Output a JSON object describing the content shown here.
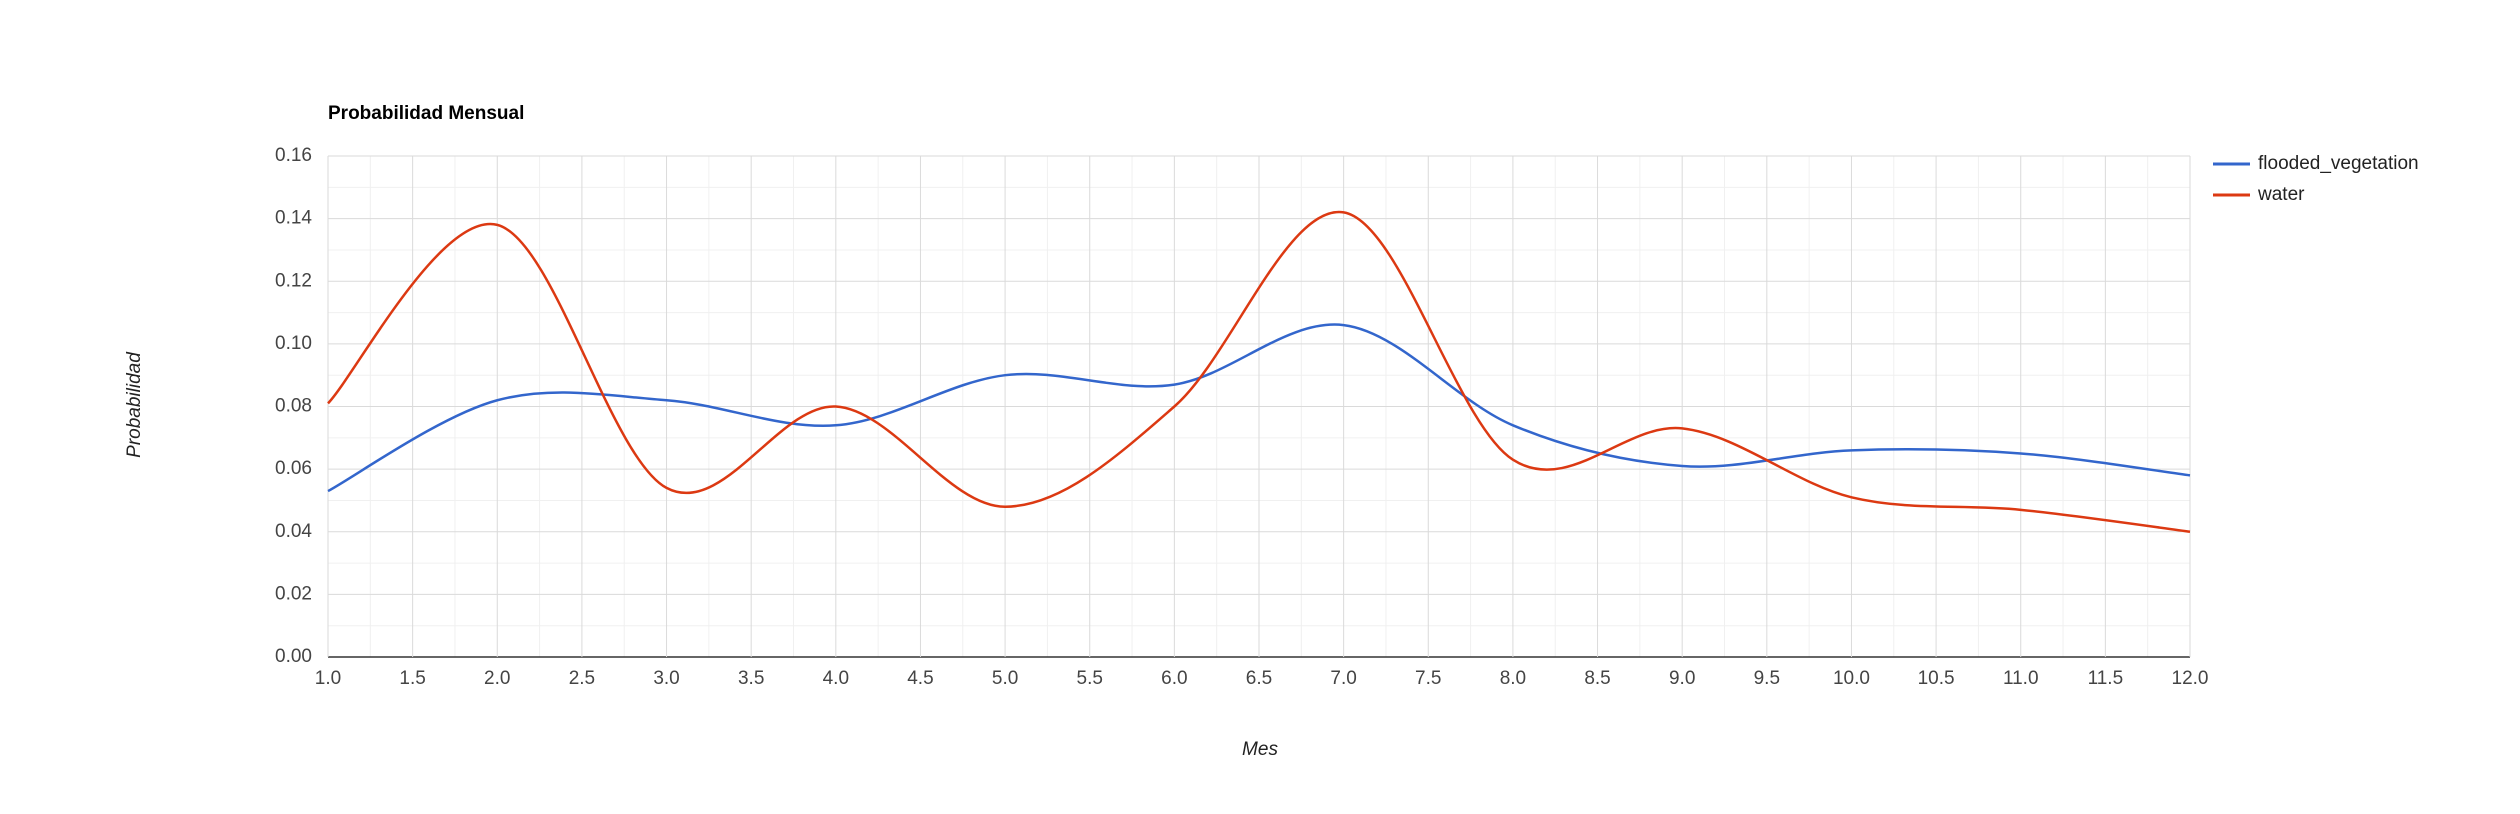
{
  "chart_data": {
    "type": "line",
    "title": "Probabilidad Mensual",
    "x_label": "Mes",
    "y_label": "Probabilidad",
    "x": [
      1,
      2,
      3,
      4,
      5,
      6,
      7,
      8,
      9,
      10,
      11,
      12
    ],
    "series": [
      {
        "name": "flooded_vegetation",
        "color": "#3366cc",
        "values": [
          0.053,
          0.082,
          0.082,
          0.074,
          0.09,
          0.087,
          0.106,
          0.074,
          0.061,
          0.066,
          0.065,
          0.058
        ]
      },
      {
        "name": "water",
        "color": "#dc3912",
        "values": [
          0.081,
          0.138,
          0.054,
          0.08,
          0.048,
          0.08,
          0.142,
          0.063,
          0.073,
          0.051,
          0.047,
          0.04
        ]
      }
    ],
    "xlim": [
      1,
      12
    ],
    "xticks": [
      {
        "value": 1,
        "label": "1.0"
      },
      1.5,
      {
        "value": 2,
        "label": "2.0"
      },
      2.5,
      {
        "value": 3,
        "label": "3.0"
      },
      3.5,
      {
        "value": 4,
        "label": "4.0"
      },
      4.5,
      {
        "value": 5,
        "label": "5.0"
      },
      5.5,
      {
        "value": 6,
        "label": "6.0"
      },
      6.5,
      {
        "value": 7,
        "label": "7.0"
      },
      7.5,
      {
        "value": 8,
        "label": "8.0"
      },
      8.5,
      {
        "value": 9,
        "label": "9.0"
      },
      9.5,
      {
        "value": 10,
        "label": "10.0"
      },
      10.5,
      {
        "value": 11,
        "label": "11.0"
      },
      11.5,
      {
        "value": 12,
        "label": "12.0"
      }
    ],
    "ylim": [
      0,
      0.16
    ],
    "yticks": [
      {
        "value": 0,
        "label": "0.00"
      },
      0.02,
      0.04,
      0.06,
      0.08,
      {
        "value": 0.1,
        "label": "0.10"
      },
      0.12,
      0.14,
      0.16
    ],
    "grid": true,
    "legend": "right"
  }
}
